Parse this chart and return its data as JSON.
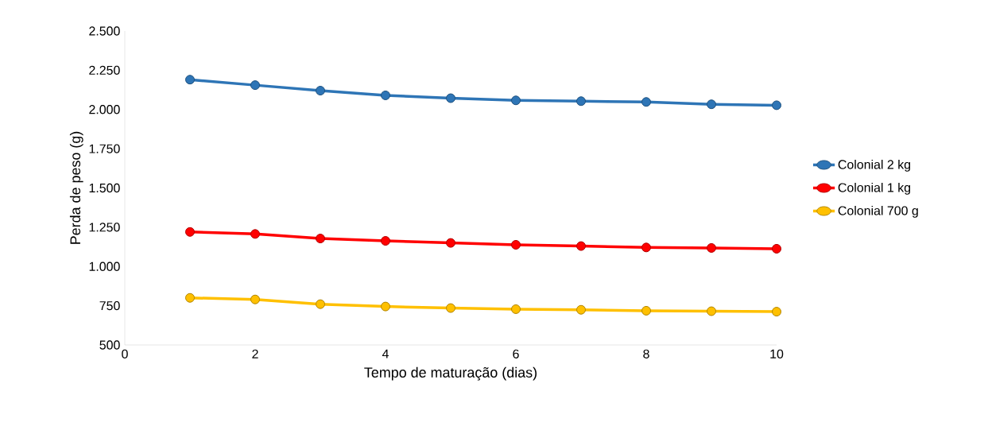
{
  "chart_data": {
    "type": "line",
    "xlabel": "Tempo de maturação (dias)",
    "ylabel": "Perda de peso (g)",
    "x": [
      1,
      2,
      3,
      4,
      5,
      6,
      7,
      8,
      9,
      10
    ],
    "series": [
      {
        "name": "Colonial 2 kg",
        "color": "#2e75b6",
        "values": [
          2190,
          2155,
          2120,
          2090,
          2072,
          2058,
          2053,
          2048,
          2033,
          2027
        ]
      },
      {
        "name": "Colonial 1 kg",
        "color": "#ff0000",
        "values": [
          1220,
          1207,
          1178,
          1163,
          1150,
          1138,
          1130,
          1121,
          1118,
          1113
        ]
      },
      {
        "name": "Colonial 700 g",
        "color": "#ffc000",
        "values": [
          800,
          790,
          760,
          745,
          735,
          728,
          724,
          718,
          715,
          712
        ]
      }
    ],
    "xlim": [
      0,
      10
    ],
    "xticks": [
      0,
      2,
      4,
      6,
      8,
      10
    ],
    "ylim": [
      500,
      2500
    ],
    "yticks": [
      {
        "value": 500,
        "label": "500"
      },
      {
        "value": 750,
        "label": "750"
      },
      {
        "value": 1000,
        "label": "1.000"
      },
      {
        "value": 1250,
        "label": "1.250"
      },
      {
        "value": 1500,
        "label": "1.500"
      },
      {
        "value": 1750,
        "label": "1.750"
      },
      {
        "value": 2000,
        "label": "2.000"
      },
      {
        "value": 2250,
        "label": "2.250"
      },
      {
        "value": 2500,
        "label": "2.500"
      }
    ],
    "grid": false,
    "legend": "right",
    "marker": "circle",
    "line_style": "solid"
  }
}
